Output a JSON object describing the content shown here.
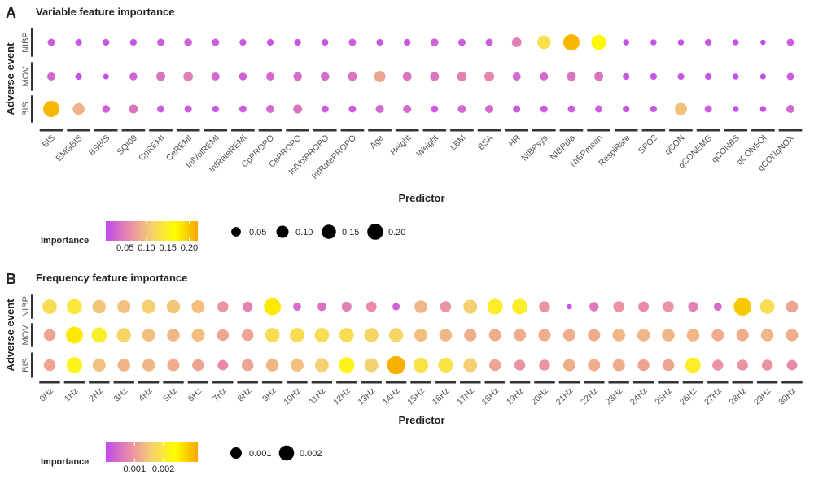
{
  "chart_data": [
    {
      "panel": "A",
      "type": "scatter",
      "title": "Variable feature importance",
      "xlabel": "Predictor",
      "ylabel": "Adverse event",
      "rows": [
        "NIBP",
        "MOV",
        "BIS"
      ],
      "categories": [
        "BIS",
        "EMGBIS",
        "BSBIS",
        "SQI09",
        "CpREMI",
        "CeREMI",
        "InfVolREMI",
        "InfRateREMI",
        "CpPROPO",
        "CePROPO",
        "InfVolPROPO",
        "InfRatePROPO",
        "Age",
        "Height",
        "Weight",
        "LBM",
        "BSA",
        "HR",
        "NIBPsys",
        "NIBPdia",
        "NIBPmean",
        "RespiRate",
        "SPO2",
        "qCON",
        "qCONEMG",
        "qCONBS",
        "qCONSQI",
        "qCONqNOX"
      ],
      "series": [
        {
          "name": "NIBP",
          "values": [
            0.02,
            0.015,
            0.015,
            0.015,
            0.02,
            0.025,
            0.02,
            0.015,
            0.015,
            0.015,
            0.015,
            0.02,
            0.015,
            0.015,
            0.025,
            0.02,
            0.02,
            0.05,
            0.13,
            0.21,
            0.17,
            0.01,
            0.01,
            0.01,
            0.015,
            0.01,
            0.005,
            0.02
          ]
        },
        {
          "name": "MOV",
          "values": [
            0.03,
            0.015,
            0.008,
            0.025,
            0.04,
            0.05,
            0.03,
            0.025,
            0.03,
            0.035,
            0.035,
            0.04,
            0.08,
            0.04,
            0.04,
            0.05,
            0.055,
            0.03,
            0.03,
            0.04,
            0.04,
            0.015,
            0.015,
            0.015,
            0.015,
            0.01,
            0.008,
            0.02
          ]
        },
        {
          "name": "BIS",
          "values": [
            0.21,
            0.09,
            0.025,
            0.04,
            0.02,
            0.02,
            0.015,
            0.02,
            0.03,
            0.04,
            0.02,
            0.02,
            0.03,
            0.03,
            0.02,
            0.03,
            0.03,
            0.02,
            0.02,
            0.02,
            0.02,
            0.015,
            0.015,
            0.1,
            0.02,
            0.01,
            0.01,
            0.03
          ]
        }
      ],
      "color_legend": {
        "title": "Importance",
        "ticks": [
          "0.05",
          "0.10",
          "0.15",
          "0.20"
        ],
        "range": [
          0.005,
          0.22
        ]
      },
      "size_legend": {
        "labels": [
          "0.05",
          "0.10",
          "0.15",
          "0.20"
        ],
        "values": [
          0.05,
          0.1,
          0.15,
          0.2
        ]
      }
    },
    {
      "panel": "B",
      "type": "scatter",
      "title": "Frequency feature importance",
      "xlabel": "Predictor",
      "ylabel": "Adverse event",
      "rows": [
        "NIBP",
        "MOV",
        "BIS"
      ],
      "categories": [
        "0Hz",
        "1Hz",
        "2Hz",
        "3Hz",
        "4Hz",
        "5Hz",
        "6Hz",
        "7Hz",
        "8Hz",
        "9Hz",
        "10Hz",
        "11Hz",
        "12Hz",
        "13Hz",
        "14Hz",
        "15Hz",
        "16Hz",
        "17Hz",
        "18Hz",
        "19Hz",
        "20Hz",
        "21Hz",
        "22Hz",
        "23Hz",
        "24Hz",
        "25Hz",
        "26Hz",
        "27Hz",
        "28Hz",
        "29Hz",
        "30Hz"
      ],
      "series": [
        {
          "name": "NIBP",
          "values": [
            0.0018,
            0.002,
            0.0015,
            0.0014,
            0.0016,
            0.0015,
            0.0014,
            0.0009,
            0.0007,
            0.0026,
            0.0004,
            0.0005,
            0.0007,
            0.0008,
            0.0003,
            0.0013,
            0.0009,
            0.0016,
            0.0021,
            0.0021,
            0.0009,
            0.0001,
            0.0006,
            0.0009,
            0.0008,
            0.0009,
            0.0007,
            0.0004,
            0.0029,
            0.0018,
            0.0011
          ]
        },
        {
          "name": "MOV",
          "values": [
            0.0011,
            0.0026,
            0.0021,
            0.0017,
            0.0014,
            0.0013,
            0.0014,
            0.0011,
            0.0011,
            0.0018,
            0.0018,
            0.0018,
            0.0018,
            0.0017,
            0.0017,
            0.0014,
            0.0013,
            0.0012,
            0.0012,
            0.0012,
            0.0012,
            0.0012,
            0.0012,
            0.0013,
            0.0013,
            0.0013,
            0.0013,
            0.0012,
            0.0012,
            0.0013,
            0.0012
          ]
        },
        {
          "name": "BIS",
          "values": [
            0.0011,
            0.0022,
            0.0014,
            0.0013,
            0.0013,
            0.0012,
            0.0011,
            0.0008,
            0.0011,
            0.0013,
            0.0014,
            0.0016,
            0.0022,
            0.0016,
            0.0031,
            0.0019,
            0.0019,
            0.0016,
            0.0011,
            0.0009,
            0.0009,
            0.0012,
            0.0012,
            0.0012,
            0.0011,
            0.0011,
            0.0021,
            0.0009,
            0.0009,
            0.0009,
            0.0008
          ]
        }
      ],
      "color_legend": {
        "title": "Importance",
        "ticks": [
          "0.001",
          "0.002"
        ],
        "range": [
          0.0,
          0.0032
        ]
      },
      "size_legend": {
        "labels": [
          "0.001",
          "0.002"
        ],
        "values": [
          0.001,
          0.002
        ]
      }
    }
  ],
  "colors": {
    "low": "#c04bf0",
    "mid_low": "#e88aa8",
    "mid": "#f5d070",
    "high_mid": "#ffff00",
    "high": "#f5a500",
    "text": "#222222",
    "axis_text": "#555555",
    "strip_bar": "#333333"
  }
}
